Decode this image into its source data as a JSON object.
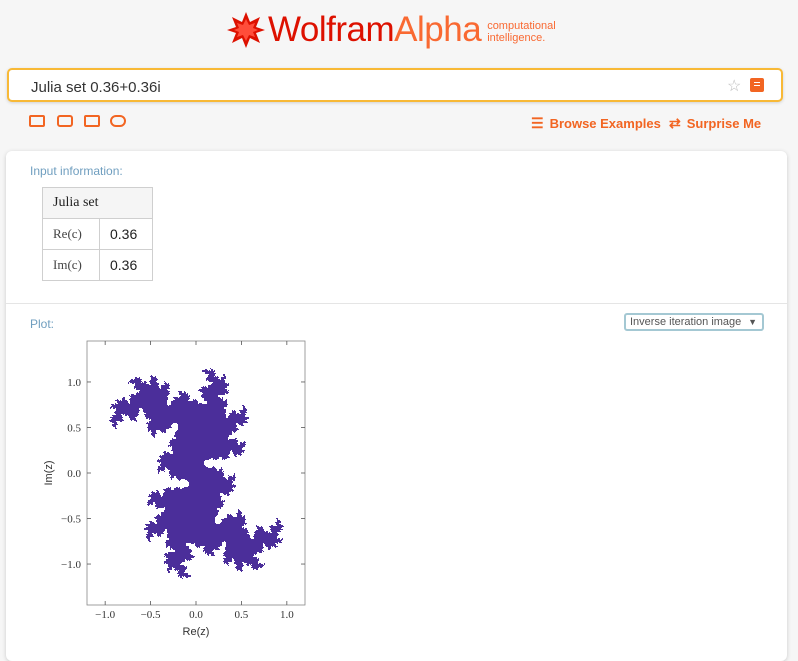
{
  "brand": {
    "name_part1": "Wolfram",
    "name_part2": "Alpha",
    "tagline_line1": "computational",
    "tagline_line2": "intelligence."
  },
  "search": {
    "value": "Julia set 0.36+0.36i"
  },
  "toolbar": {
    "browse_label": "Browse Examples",
    "surprise_label": "Surprise Me"
  },
  "input_pod": {
    "title": "Input information:",
    "header": "Julia set",
    "rows": [
      {
        "label": "Re(c)",
        "value": "0.36"
      },
      {
        "label": "Im(c)",
        "value": "0.36"
      }
    ]
  },
  "plot_pod": {
    "title": "Plot:",
    "dropdown_selected": "Inverse iteration image"
  },
  "chart_data": {
    "type": "scatter",
    "description_c": [
      0.36,
      0.36
    ],
    "xlabel": "Re(z)",
    "ylabel": "Im(z)",
    "xlim": [
      -1.2,
      1.2
    ],
    "ylim": [
      -1.45,
      1.45
    ],
    "xticks": [
      -1.0,
      -0.5,
      0.0,
      0.5,
      1.0
    ],
    "yticks": [
      -1.0,
      -0.5,
      0.0,
      0.5,
      1.0
    ],
    "xtick_labels": [
      "−1.0",
      "−0.5",
      "0.0",
      "0.5",
      "1.0"
    ],
    "ytick_labels": [
      "−1.0",
      "−0.5",
      "0.0",
      "0.5",
      "1.0"
    ],
    "point_color": "#4b2e9a"
  },
  "colors": {
    "accent": "#f26522",
    "logo_red": "#dd1100",
    "search_border": "#f8b936",
    "pod_title": "#6f9ebf"
  }
}
